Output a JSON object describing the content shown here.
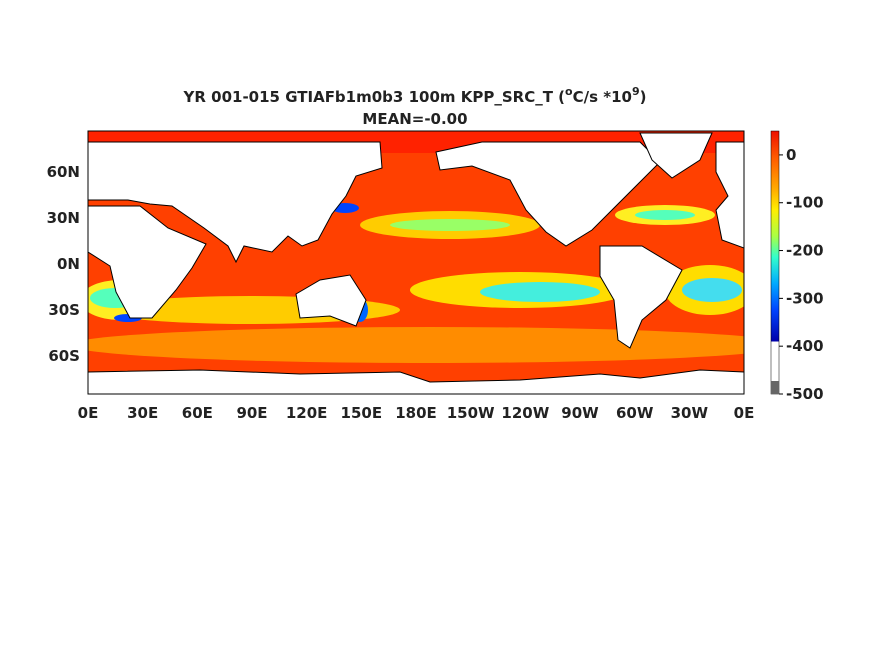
{
  "map": {
    "title_parts": [
      "YR 001-015 GTIAFb1m0b3 100m KPP_SRC_T (",
      "o",
      "C/s *10",
      "9",
      ")"
    ],
    "subtitle": "MEAN=-0.00",
    "lat_labels": [
      "60N",
      "30N",
      "0N",
      "30S",
      "60S"
    ],
    "lon_labels": [
      "0E",
      "30E",
      "60E",
      "90E",
      "120E",
      "150E",
      "180E",
      "150W",
      "120W",
      "90W",
      "60W",
      "30W",
      "0E"
    ],
    "colorbar": {
      "range": [
        -500,
        50
      ],
      "ticks": [
        0,
        -100,
        -200,
        -300,
        -400,
        -500
      ]
    }
  }
}
